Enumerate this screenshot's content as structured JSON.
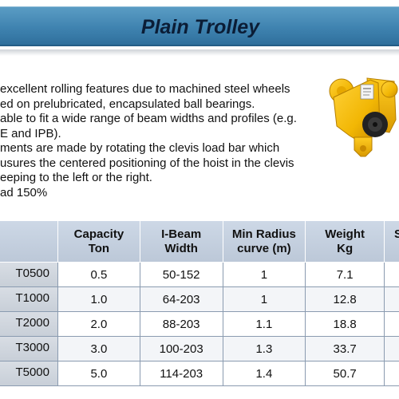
{
  "title": "Plain Trolley",
  "features": [
    "excellent rolling features due to machined steel wheels",
    "ed on prelubricated, encapsulated ball bearings.",
    "able to fit a wide range of beam widths and profiles (e.g.",
    "E and IPB).",
    "ments are made by rotating the clevis load bar which",
    "usures the centered positioning of the hoist in the clevis",
    "eeping to the left or the right.",
    "ad 150%"
  ],
  "table": {
    "headers": [
      "",
      "Capacity Ton",
      "I-Beam Width",
      "Min Radius curve (m)",
      "Weight Kg",
      "S"
    ],
    "header_lines": [
      [
        ""
      ],
      [
        "Capacity",
        "Ton"
      ],
      [
        "I-Beam",
        "Width"
      ],
      [
        "Min Radius",
        "curve (m)"
      ],
      [
        "Weight",
        "Kg"
      ],
      [
        "S"
      ]
    ],
    "rows": [
      {
        "model": "T0500",
        "capacity": "0.5",
        "beam_width": "50-152",
        "min_radius": "1",
        "weight": "7.1"
      },
      {
        "model": "T1000",
        "capacity": "1.0",
        "beam_width": "64-203",
        "min_radius": "1",
        "weight": "12.8"
      },
      {
        "model": "T2000",
        "capacity": "2.0",
        "beam_width": "88-203",
        "min_radius": "1.1",
        "weight": "18.8"
      },
      {
        "model": "T3000",
        "capacity": "3.0",
        "beam_width": "100-203",
        "min_radius": "1.3",
        "weight": "33.7"
      },
      {
        "model": "T5000",
        "capacity": "5.0",
        "beam_width": "114-203",
        "min_radius": "1.4",
        "weight": "50.7"
      }
    ]
  },
  "colors": {
    "title_bar": "#3f83b0",
    "title_text": "#0b1d36",
    "header_bg": "#c6d1df",
    "trolley_yellow": "#f2b705"
  },
  "image": {
    "icon": "trolley-product-photo"
  }
}
